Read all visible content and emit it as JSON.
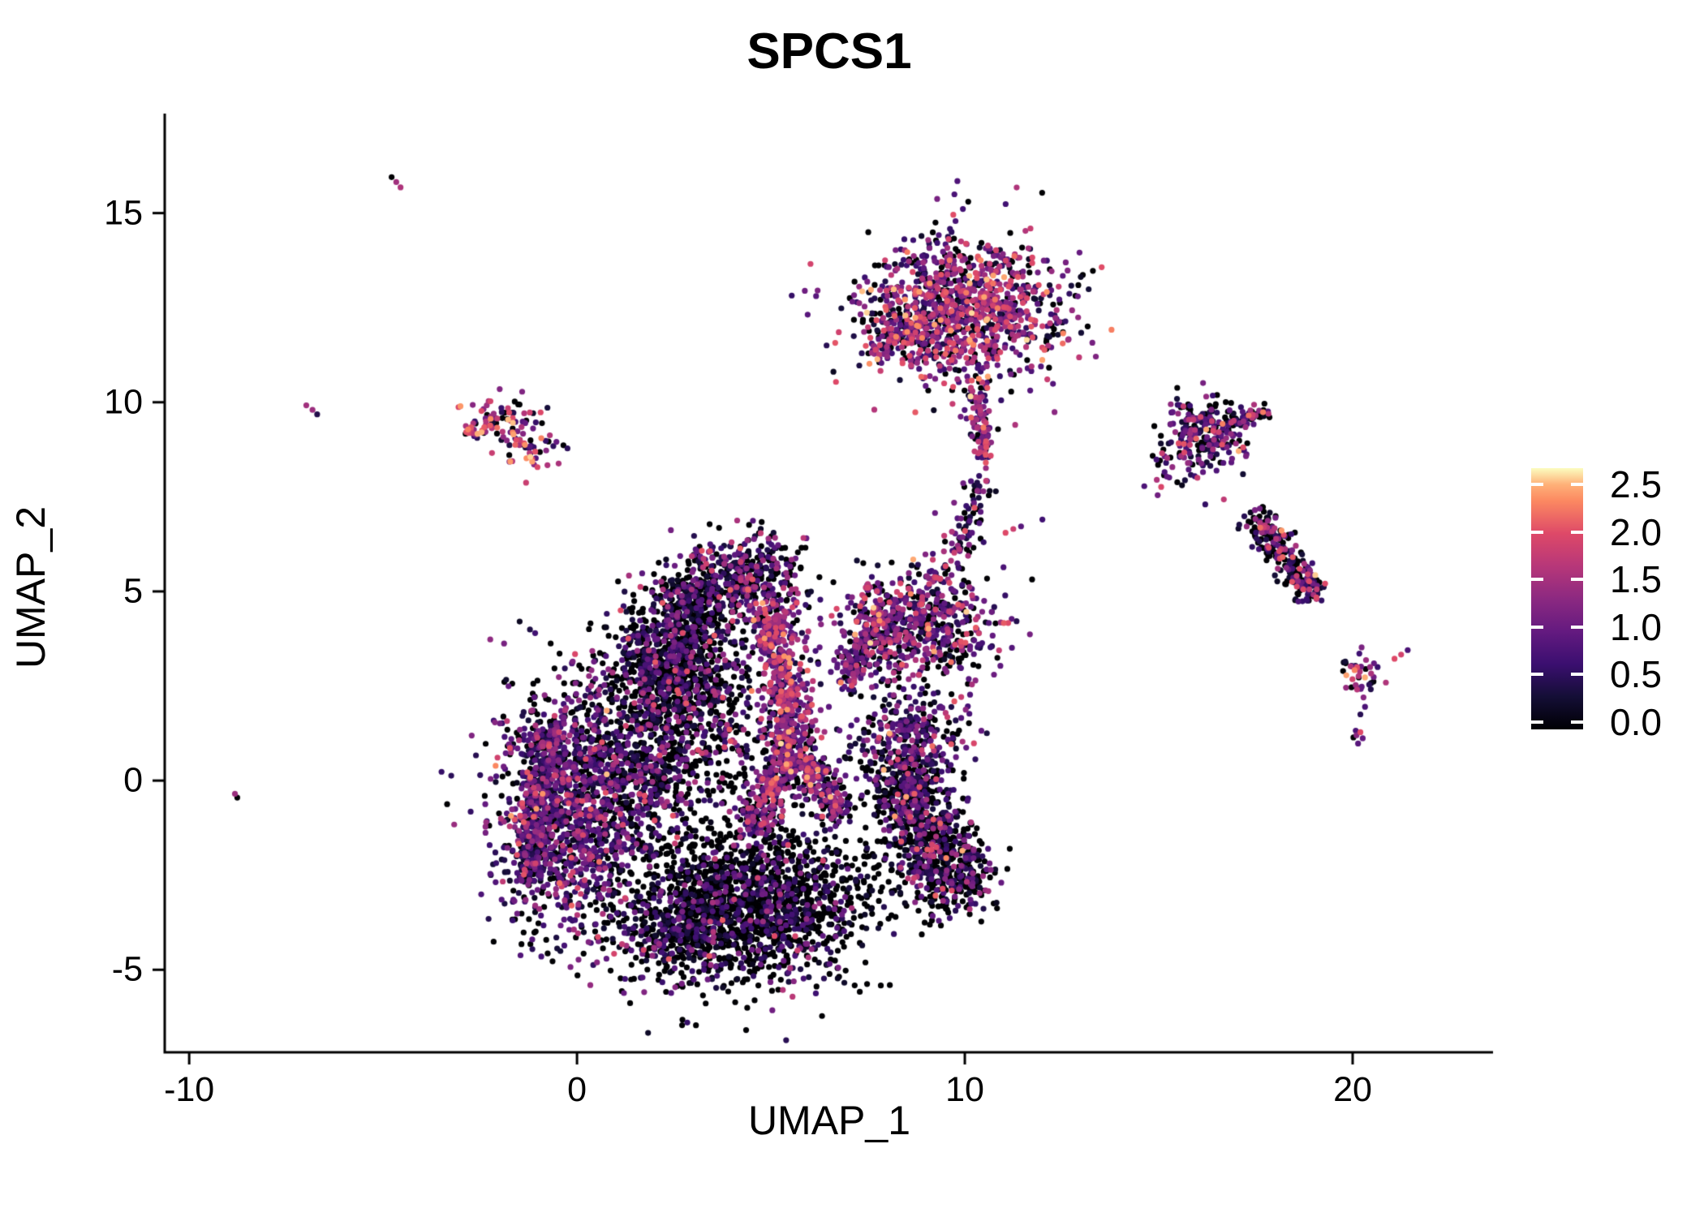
{
  "chart_data": {
    "type": "scatter",
    "title": "SPCS1",
    "xlabel": "UMAP_1",
    "ylabel": "UMAP_2",
    "grid": false,
    "legend_position": "right",
    "x_range": [
      -10.61,
      23.62
    ],
    "y_range": [
      -7.16,
      17.63
    ],
    "x_ticks": [
      {
        "label": "-10",
        "v": -10
      },
      {
        "label": "0",
        "v": 0
      },
      {
        "label": "10",
        "v": 10
      },
      {
        "label": "20",
        "v": 20
      }
    ],
    "y_ticks": [
      {
        "label": "15",
        "v": 15
      },
      {
        "label": "10",
        "v": 10
      },
      {
        "label": "5",
        "v": 5
      },
      {
        "label": "0",
        "v": 0
      },
      {
        "label": "-5",
        "v": -5
      }
    ],
    "colorbar": {
      "ticks": [
        {
          "label": "2.5",
          "v": 2.5
        },
        {
          "label": "2.0",
          "v": 2.0
        },
        {
          "label": "1.5",
          "v": 1.5
        },
        {
          "label": "1.0",
          "v": 1.0
        },
        {
          "label": "0.5",
          "v": 0.5
        },
        {
          "label": "0.0",
          "v": 0.0
        }
      ],
      "vmax": 2.67,
      "colormap": "magma",
      "stops": [
        {
          "t": 0.0,
          "color": "#000004"
        },
        {
          "t": 0.125,
          "color": "#140e36"
        },
        {
          "t": 0.25,
          "color": "#3b0f70"
        },
        {
          "t": 0.375,
          "color": "#641a80"
        },
        {
          "t": 0.5,
          "color": "#8c2981"
        },
        {
          "t": 0.625,
          "color": "#b73779"
        },
        {
          "t": 0.75,
          "color": "#de4968"
        },
        {
          "t": 0.875,
          "color": "#fc8961"
        },
        {
          "t": 0.9375,
          "color": "#feb078"
        },
        {
          "t": 1.0,
          "color": "#fcfdbf"
        }
      ]
    },
    "point_radius_px": 3.6,
    "expr_bins": [
      [
        0,
        0
      ],
      [
        0.15,
        0.6
      ],
      [
        0.6,
        1.1
      ],
      [
        1.1,
        1.6
      ],
      [
        1.6,
        2.1
      ],
      [
        2.1,
        2.6
      ]
    ],
    "clusters": [
      {
        "name": "left-lobe",
        "type": "blob",
        "c": [
          -0.05,
          -0.7
        ],
        "s": [
          1.05,
          1.65
        ],
        "n": 1450,
        "w": [
          0.3,
          0.24,
          0.28,
          0.13,
          0.045,
          0.005
        ]
      },
      {
        "name": "left-lobe-rim",
        "type": "band",
        "from": [
          -1.25,
          -2.6
        ],
        "to": [
          -0.7,
          1.4
        ],
        "width": 0.5,
        "n": 330,
        "w": [
          0.2,
          0.3,
          0.32,
          0.13,
          0.045,
          0.005
        ]
      },
      {
        "name": "upper-left-dark-lobe",
        "type": "blob",
        "c": [
          2.45,
          3.25
        ],
        "s": [
          0.8,
          0.8
        ],
        "n": 820,
        "w": [
          0.56,
          0.24,
          0.13,
          0.05,
          0.02,
          0
        ]
      },
      {
        "name": "crown",
        "type": "blob",
        "c": [
          4.3,
          5.45
        ],
        "s": [
          0.8,
          0.5
        ],
        "n": 400,
        "w": [
          0.42,
          0.22,
          0.2,
          0.11,
          0.045,
          0.005
        ]
      },
      {
        "name": "crown-left",
        "type": "blob",
        "c": [
          3.0,
          4.8
        ],
        "s": [
          0.5,
          0.42
        ],
        "n": 190,
        "w": [
          0.55,
          0.25,
          0.14,
          0.05,
          0.01,
          0
        ]
      },
      {
        "name": "mid-sparse",
        "type": "blob",
        "c": [
          3.2,
          1.4
        ],
        "s": [
          1.05,
          1.15
        ],
        "n": 520,
        "w": [
          0.58,
          0.2,
          0.13,
          0.07,
          0.02,
          0
        ]
      },
      {
        "name": "mid-left-ring",
        "type": "blob",
        "c": [
          1.7,
          0.3
        ],
        "s": [
          0.6,
          0.95
        ],
        "n": 290,
        "w": [
          0.42,
          0.26,
          0.2,
          0.09,
          0.03,
          0
        ]
      },
      {
        "name": "pink-ridge-upper",
        "type": "band",
        "from": [
          4.95,
          4.6
        ],
        "to": [
          5.6,
          0.9
        ],
        "width": 0.62,
        "n": 520,
        "w": [
          0.14,
          0.15,
          0.25,
          0.29,
          0.14,
          0.03
        ]
      },
      {
        "name": "pink-ridge-lower",
        "type": "band",
        "from": [
          5.5,
          0.9
        ],
        "to": [
          4.55,
          -1.35
        ],
        "width": 0.55,
        "n": 300,
        "w": [
          0.15,
          0.16,
          0.26,
          0.27,
          0.13,
          0.03
        ]
      },
      {
        "name": "ridge-branch-right",
        "type": "band",
        "from": [
          5.7,
          0.7
        ],
        "to": [
          6.9,
          -0.9
        ],
        "width": 0.5,
        "n": 220,
        "w": [
          0.2,
          0.2,
          0.26,
          0.22,
          0.1,
          0.02
        ]
      },
      {
        "name": "bottom-lobe",
        "type": "blob",
        "c": [
          4.5,
          -3.2
        ],
        "s": [
          1.55,
          1.05
        ],
        "n": 1650,
        "w": [
          0.68,
          0.17,
          0.1,
          0.04,
          0.01,
          0
        ]
      },
      {
        "name": "bottom-foot",
        "type": "blob",
        "c": [
          2.7,
          -4.1
        ],
        "s": [
          0.75,
          0.55
        ],
        "n": 280,
        "w": [
          0.6,
          0.22,
          0.13,
          0.04,
          0.01,
          0
        ]
      },
      {
        "name": "right-wing",
        "type": "band",
        "from": [
          8.1,
          0.4
        ],
        "to": [
          10.0,
          -3.0
        ],
        "width": 1.05,
        "n": 950,
        "w": [
          0.55,
          0.2,
          0.14,
          0.08,
          0.025,
          0.005
        ]
      },
      {
        "name": "wing-shoulder",
        "type": "blob",
        "c": [
          8.6,
          1.1
        ],
        "s": [
          0.75,
          0.6
        ],
        "n": 260,
        "w": [
          0.25,
          0.28,
          0.27,
          0.13,
          0.06,
          0.01
        ]
      },
      {
        "name": "right-mid-cluster",
        "type": "blob",
        "c": [
          8.8,
          4.1
        ],
        "s": [
          1.0,
          0.85
        ],
        "n": 640,
        "w": [
          0.24,
          0.18,
          0.26,
          0.2,
          0.1,
          0.02
        ]
      },
      {
        "name": "right-mid-neck",
        "type": "band",
        "from": [
          6.9,
          2.5
        ],
        "to": [
          7.9,
          4.5
        ],
        "width": 0.5,
        "n": 210,
        "w": [
          0.3,
          0.2,
          0.24,
          0.16,
          0.08,
          0.02
        ]
      },
      {
        "name": "upper-connector",
        "type": "band",
        "from": [
          9.6,
          5.6
        ],
        "to": [
          10.5,
          7.9
        ],
        "width": 0.42,
        "n": 85,
        "w": [
          0.28,
          0.2,
          0.2,
          0.19,
          0.11,
          0.02
        ]
      },
      {
        "name": "mid-orange-streak",
        "type": "points",
        "pts": [
          [
            11.05,
            6.55,
            2.0
          ],
          [
            11.25,
            6.65,
            1.85
          ],
          [
            11.45,
            6.72,
            0.9
          ],
          [
            12.0,
            6.9,
            0.7
          ]
        ]
      },
      {
        "name": "top-cluster-main",
        "type": "blob",
        "c": [
          9.9,
          12.45
        ],
        "s": [
          1.3,
          0.95
        ],
        "n": 1180,
        "w": [
          0.18,
          0.15,
          0.22,
          0.25,
          0.16,
          0.04
        ]
      },
      {
        "name": "top-cluster-arm",
        "type": "band",
        "from": [
          7.55,
          11.3
        ],
        "to": [
          8.75,
          12.05
        ],
        "width": 0.3,
        "n": 75,
        "w": [
          0.14,
          0.14,
          0.2,
          0.26,
          0.21,
          0.05
        ]
      },
      {
        "name": "top-cluster-tail",
        "type": "band",
        "from": [
          10.25,
          10.4
        ],
        "to": [
          10.55,
          8.45
        ],
        "width": 0.3,
        "n": 105,
        "w": [
          0.14,
          0.12,
          0.2,
          0.28,
          0.21,
          0.05
        ]
      },
      {
        "name": "top-antenna",
        "type": "band",
        "from": [
          9.62,
          14.3
        ],
        "to": [
          9.78,
          15.0
        ],
        "width": 0.12,
        "n": 8,
        "w": [
          0.2,
          0.12,
          0.2,
          0.28,
          0.2,
          0
        ]
      },
      {
        "name": "top-antenna-dot",
        "type": "points",
        "pts": [
          [
            9.55,
            14.08,
            1.5
          ]
        ]
      },
      {
        "name": "left-small-upper",
        "type": "blob",
        "c": [
          -1.95,
          9.55
        ],
        "s": [
          0.52,
          0.3
        ],
        "n": 72,
        "w": [
          0.12,
          0.1,
          0.17,
          0.2,
          0.26,
          0.15
        ]
      },
      {
        "name": "left-small-arm",
        "type": "band",
        "from": [
          -2.9,
          9.15
        ],
        "to": [
          -2.35,
          9.45
        ],
        "width": 0.2,
        "n": 17,
        "w": [
          0.05,
          0.05,
          0.1,
          0.15,
          0.3,
          0.35
        ]
      },
      {
        "name": "left-small-lower",
        "type": "blob",
        "c": [
          -1.35,
          8.72
        ],
        "s": [
          0.45,
          0.27
        ],
        "n": 48,
        "w": [
          0.14,
          0.1,
          0.15,
          0.2,
          0.27,
          0.14
        ]
      },
      {
        "name": "topright-body",
        "type": "blob",
        "c": [
          16.25,
          9.2
        ],
        "s": [
          0.58,
          0.45
        ],
        "n": 225,
        "w": [
          0.3,
          0.26,
          0.22,
          0.12,
          0.08,
          0.02
        ]
      },
      {
        "name": "topright-wing",
        "type": "band",
        "from": [
          16.85,
          9.45
        ],
        "to": [
          17.85,
          9.8
        ],
        "width": 0.25,
        "n": 55,
        "w": [
          0.28,
          0.2,
          0.22,
          0.15,
          0.12,
          0.03
        ]
      },
      {
        "name": "topright-scatter",
        "type": "blob",
        "c": [
          15.6,
          8.3
        ],
        "s": [
          0.5,
          0.45
        ],
        "n": 28,
        "w": [
          0.2,
          0.3,
          0.3,
          0.15,
          0.05,
          0
        ]
      },
      {
        "name": "topright-stray",
        "type": "points",
        "pts": [
          [
            16.2,
            7.3,
            0.6
          ],
          [
            14.95,
            7.95,
            1.6
          ]
        ]
      },
      {
        "name": "right-diagonal",
        "type": "band",
        "from": [
          17.5,
          7.0
        ],
        "to": [
          19.0,
          4.85
        ],
        "width": 0.45,
        "n": 250,
        "w": [
          0.36,
          0.26,
          0.18,
          0.1,
          0.08,
          0.02
        ]
      },
      {
        "name": "y-cluster",
        "type": "blob",
        "c": [
          20.25,
          2.75
        ],
        "s": [
          0.3,
          0.28
        ],
        "n": 34,
        "w": [
          0.15,
          0.2,
          0.25,
          0.2,
          0.15,
          0.05
        ]
      },
      {
        "name": "y-cluster-arms",
        "type": "points",
        "pts": [
          [
            19.82,
            3.1,
            0
          ],
          [
            19.95,
            3.02,
            1.6
          ],
          [
            20.05,
            2.92,
            2.3
          ],
          [
            20.55,
            3.1,
            1.0
          ],
          [
            20.45,
            3.0,
            1.4
          ],
          [
            20.28,
            2.2,
            1.3
          ],
          [
            20.32,
            1.95,
            0.8
          ],
          [
            20.2,
            1.75,
            0.5
          ]
        ]
      },
      {
        "name": "low-clump",
        "type": "points",
        "pts": [
          [
            20.08,
            1.32,
            0.8
          ],
          [
            20.2,
            1.28,
            2.0
          ],
          [
            20.02,
            1.14,
            0
          ],
          [
            20.26,
            1.12,
            1.0
          ],
          [
            20.14,
            0.98,
            0.9
          ],
          [
            20.1,
            1.2,
            1.3
          ]
        ]
      },
      {
        "name": "far-right-streak",
        "type": "points",
        "pts": [
          [
            21.08,
            3.22,
            2.0
          ],
          [
            21.25,
            3.33,
            1.9
          ],
          [
            21.42,
            3.45,
            0.8
          ]
        ]
      },
      {
        "name": "topleft-streak",
        "type": "points",
        "pts": [
          [
            -4.78,
            15.95,
            0
          ],
          [
            -4.66,
            15.82,
            1.5
          ],
          [
            -4.55,
            15.68,
            1.6
          ]
        ]
      },
      {
        "name": "left-pair",
        "type": "points",
        "pts": [
          [
            -6.98,
            9.92,
            1.5
          ],
          [
            -6.82,
            9.8,
            1.45
          ],
          [
            -6.7,
            9.68,
            0.45
          ]
        ]
      },
      {
        "name": "lone-dot",
        "type": "points",
        "pts": [
          [
            -8.76,
            -0.45,
            0
          ],
          [
            -8.82,
            -0.35,
            1.45
          ]
        ]
      }
    ]
  }
}
